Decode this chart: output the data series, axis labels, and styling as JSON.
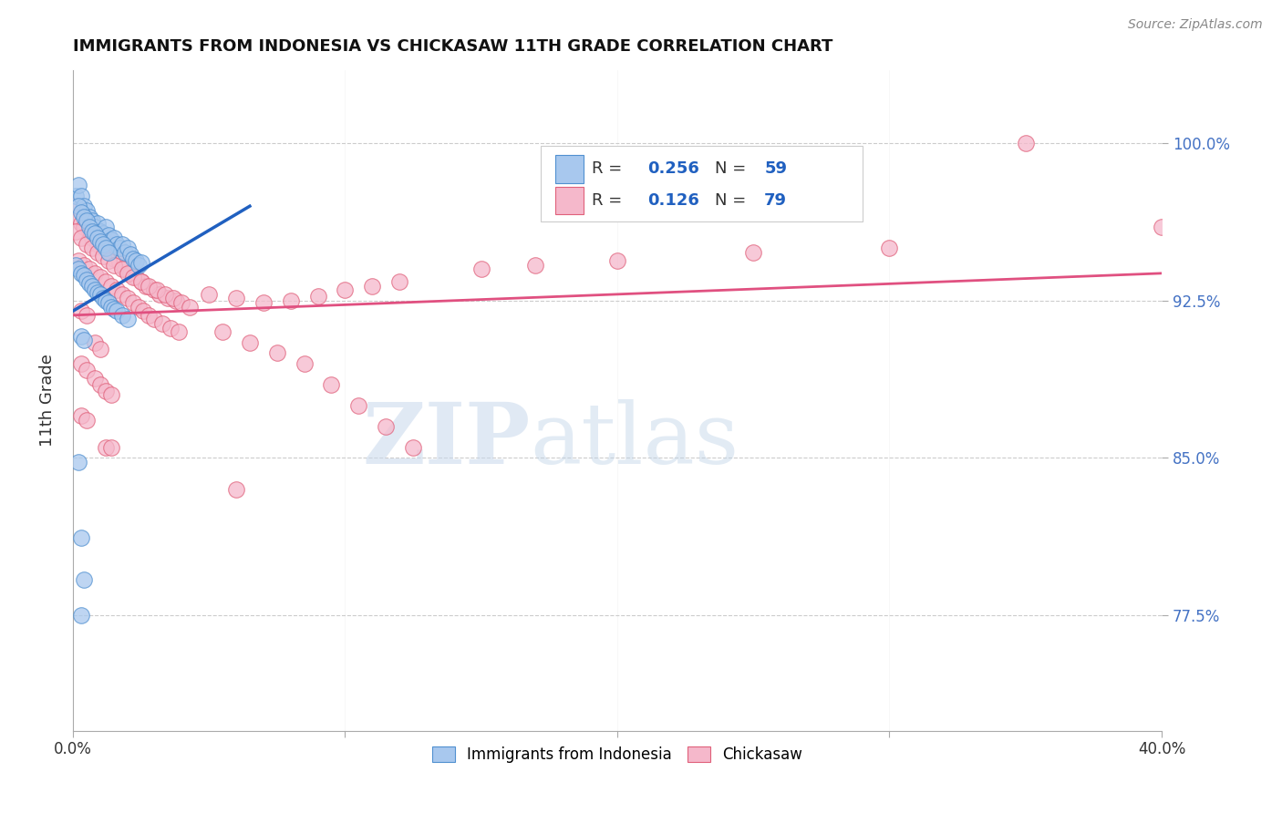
{
  "title": "IMMIGRANTS FROM INDONESIA VS CHICKASAW 11TH GRADE CORRELATION CHART",
  "source": "Source: ZipAtlas.com",
  "ylabel": "11th Grade",
  "ytick_labels": [
    "77.5%",
    "85.0%",
    "92.5%",
    "100.0%"
  ],
  "ytick_values": [
    0.775,
    0.85,
    0.925,
    1.0
  ],
  "xlim": [
    0.0,
    0.4
  ],
  "ylim": [
    0.72,
    1.035
  ],
  "watermark_zip": "ZIP",
  "watermark_atlas": "atlas",
  "blue_color": "#A8C8EE",
  "blue_edge": "#5090D0",
  "pink_color": "#F5B8CB",
  "pink_edge": "#E0607A",
  "trendline_blue": "#2060C0",
  "trendline_pink": "#E05080",
  "blue_scatter": [
    [
      0.001,
      0.975
    ],
    [
      0.002,
      0.98
    ],
    [
      0.003,
      0.975
    ],
    [
      0.004,
      0.97
    ],
    [
      0.005,
      0.968
    ],
    [
      0.006,
      0.965
    ],
    [
      0.007,
      0.963
    ],
    [
      0.008,
      0.96
    ],
    [
      0.009,
      0.962
    ],
    [
      0.01,
      0.958
    ],
    [
      0.011,
      0.957
    ],
    [
      0.012,
      0.96
    ],
    [
      0.013,
      0.956
    ],
    [
      0.014,
      0.954
    ],
    [
      0.015,
      0.955
    ],
    [
      0.016,
      0.952
    ],
    [
      0.017,
      0.95
    ],
    [
      0.018,
      0.952
    ],
    [
      0.019,
      0.948
    ],
    [
      0.02,
      0.95
    ],
    [
      0.021,
      0.947
    ],
    [
      0.022,
      0.945
    ],
    [
      0.023,
      0.944
    ],
    [
      0.024,
      0.942
    ],
    [
      0.025,
      0.943
    ],
    [
      0.002,
      0.97
    ],
    [
      0.003,
      0.967
    ],
    [
      0.004,
      0.965
    ],
    [
      0.005,
      0.963
    ],
    [
      0.006,
      0.96
    ],
    [
      0.007,
      0.958
    ],
    [
      0.008,
      0.957
    ],
    [
      0.009,
      0.955
    ],
    [
      0.01,
      0.953
    ],
    [
      0.011,
      0.952
    ],
    [
      0.012,
      0.95
    ],
    [
      0.013,
      0.948
    ],
    [
      0.001,
      0.942
    ],
    [
      0.002,
      0.94
    ],
    [
      0.003,
      0.938
    ],
    [
      0.004,
      0.937
    ],
    [
      0.005,
      0.935
    ],
    [
      0.006,
      0.933
    ],
    [
      0.007,
      0.932
    ],
    [
      0.008,
      0.93
    ],
    [
      0.009,
      0.929
    ],
    [
      0.01,
      0.928
    ],
    [
      0.011,
      0.926
    ],
    [
      0.012,
      0.925
    ],
    [
      0.013,
      0.924
    ],
    [
      0.014,
      0.922
    ],
    [
      0.015,
      0.921
    ],
    [
      0.016,
      0.92
    ],
    [
      0.018,
      0.918
    ],
    [
      0.02,
      0.916
    ],
    [
      0.003,
      0.908
    ],
    [
      0.004,
      0.906
    ],
    [
      0.002,
      0.848
    ],
    [
      0.003,
      0.812
    ],
    [
      0.004,
      0.792
    ],
    [
      0.003,
      0.775
    ]
  ],
  "pink_scatter": [
    [
      0.001,
      0.97
    ],
    [
      0.002,
      0.965
    ],
    [
      0.003,
      0.962
    ],
    [
      0.004,
      0.96
    ],
    [
      0.006,
      0.958
    ],
    [
      0.007,
      0.955
    ],
    [
      0.009,
      0.952
    ],
    [
      0.011,
      0.95
    ],
    [
      0.013,
      0.948
    ],
    [
      0.015,
      0.945
    ],
    [
      0.017,
      0.943
    ],
    [
      0.019,
      0.94
    ],
    [
      0.021,
      0.938
    ],
    [
      0.023,
      0.936
    ],
    [
      0.025,
      0.934
    ],
    [
      0.027,
      0.932
    ],
    [
      0.03,
      0.93
    ],
    [
      0.032,
      0.928
    ],
    [
      0.035,
      0.926
    ],
    [
      0.038,
      0.925
    ],
    [
      0.001,
      0.958
    ],
    [
      0.003,
      0.955
    ],
    [
      0.005,
      0.952
    ],
    [
      0.007,
      0.95
    ],
    [
      0.009,
      0.948
    ],
    [
      0.011,
      0.946
    ],
    [
      0.013,
      0.944
    ],
    [
      0.015,
      0.942
    ],
    [
      0.018,
      0.94
    ],
    [
      0.02,
      0.938
    ],
    [
      0.022,
      0.936
    ],
    [
      0.025,
      0.934
    ],
    [
      0.028,
      0.932
    ],
    [
      0.031,
      0.93
    ],
    [
      0.034,
      0.928
    ],
    [
      0.037,
      0.926
    ],
    [
      0.04,
      0.924
    ],
    [
      0.043,
      0.922
    ],
    [
      0.002,
      0.944
    ],
    [
      0.004,
      0.942
    ],
    [
      0.006,
      0.94
    ],
    [
      0.008,
      0.938
    ],
    [
      0.01,
      0.936
    ],
    [
      0.012,
      0.934
    ],
    [
      0.014,
      0.932
    ],
    [
      0.016,
      0.93
    ],
    [
      0.018,
      0.928
    ],
    [
      0.02,
      0.926
    ],
    [
      0.022,
      0.924
    ],
    [
      0.024,
      0.922
    ],
    [
      0.026,
      0.92
    ],
    [
      0.028,
      0.918
    ],
    [
      0.03,
      0.916
    ],
    [
      0.033,
      0.914
    ],
    [
      0.036,
      0.912
    ],
    [
      0.039,
      0.91
    ],
    [
      0.003,
      0.92
    ],
    [
      0.005,
      0.918
    ],
    [
      0.008,
      0.905
    ],
    [
      0.01,
      0.902
    ],
    [
      0.003,
      0.895
    ],
    [
      0.005,
      0.892
    ],
    [
      0.008,
      0.888
    ],
    [
      0.01,
      0.885
    ],
    [
      0.012,
      0.882
    ],
    [
      0.014,
      0.88
    ],
    [
      0.003,
      0.87
    ],
    [
      0.005,
      0.868
    ],
    [
      0.012,
      0.855
    ],
    [
      0.014,
      0.855
    ],
    [
      0.05,
      0.928
    ],
    [
      0.06,
      0.926
    ],
    [
      0.07,
      0.924
    ],
    [
      0.08,
      0.925
    ],
    [
      0.09,
      0.927
    ],
    [
      0.1,
      0.93
    ],
    [
      0.11,
      0.932
    ],
    [
      0.12,
      0.934
    ],
    [
      0.15,
      0.94
    ],
    [
      0.17,
      0.942
    ],
    [
      0.2,
      0.944
    ],
    [
      0.25,
      0.948
    ],
    [
      0.3,
      0.95
    ],
    [
      0.35,
      1.0
    ],
    [
      0.055,
      0.91
    ],
    [
      0.065,
      0.905
    ],
    [
      0.075,
      0.9
    ],
    [
      0.085,
      0.895
    ],
    [
      0.095,
      0.885
    ],
    [
      0.105,
      0.875
    ],
    [
      0.115,
      0.865
    ],
    [
      0.125,
      0.855
    ],
    [
      0.06,
      0.835
    ],
    [
      0.4,
      0.96
    ]
  ],
  "blue_trend_x": [
    0.0,
    0.065
  ],
  "blue_trend_y": [
    0.92,
    0.97
  ],
  "pink_trend_x": [
    0.0,
    0.4
  ],
  "pink_trend_y": [
    0.918,
    0.938
  ]
}
